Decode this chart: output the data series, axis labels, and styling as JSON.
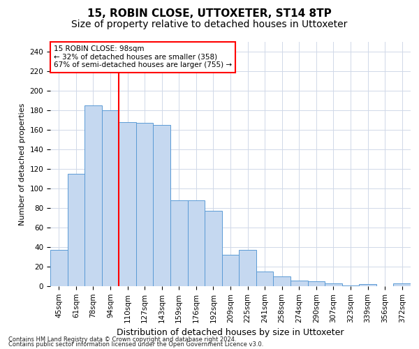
{
  "title": "15, ROBIN CLOSE, UTTOXETER, ST14 8TP",
  "subtitle": "Size of property relative to detached houses in Uttoxeter",
  "xlabel": "Distribution of detached houses by size in Uttoxeter",
  "ylabel": "Number of detached properties",
  "categories": [
    "45sqm",
    "61sqm",
    "78sqm",
    "94sqm",
    "110sqm",
    "127sqm",
    "143sqm",
    "159sqm",
    "176sqm",
    "192sqm",
    "209sqm",
    "225sqm",
    "241sqm",
    "258sqm",
    "274sqm",
    "290sqm",
    "307sqm",
    "323sqm",
    "339sqm",
    "356sqm",
    "372sqm"
  ],
  "values": [
    37,
    115,
    185,
    180,
    168,
    167,
    165,
    88,
    88,
    77,
    32,
    37,
    15,
    10,
    6,
    5,
    3,
    1,
    2,
    0,
    3
  ],
  "bar_color": "#c5d8f0",
  "bar_edgecolor": "#5b9bd5",
  "redline_x": 3.5,
  "annotation_line1": "15 ROBIN CLOSE: 98sqm",
  "annotation_line2": "← 32% of detached houses are smaller (358)",
  "annotation_line3": "67% of semi-detached houses are larger (755) →",
  "ylim": [
    0,
    250
  ],
  "yticks": [
    0,
    20,
    40,
    60,
    80,
    100,
    120,
    140,
    160,
    180,
    200,
    220,
    240
  ],
  "footer1": "Contains HM Land Registry data © Crown copyright and database right 2024.",
  "footer2": "Contains public sector information licensed under the Open Government Licence v3.0.",
  "bg_color": "#ffffff",
  "grid_color": "#d0d8e8",
  "title_fontsize": 11,
  "subtitle_fontsize": 10,
  "ylabel_fontsize": 8,
  "xlabel_fontsize": 9,
  "tick_fontsize": 7.5,
  "footer_fontsize": 6
}
